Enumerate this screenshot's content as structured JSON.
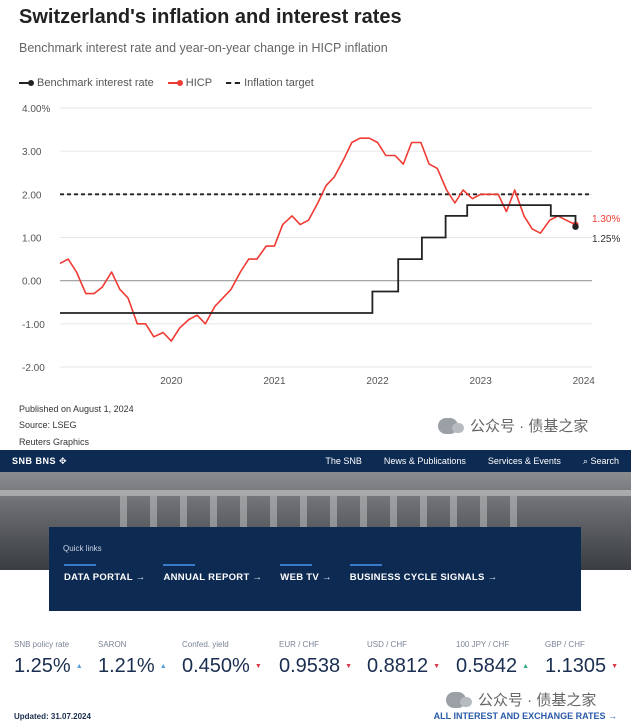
{
  "chart": {
    "title": "Switzerland's inflation and interest rates",
    "subtitle": "Benchmark interest rate and year-on-year change in HICP inflation",
    "legend": {
      "rate": "Benchmark interest rate",
      "hicp": "HICP",
      "target": "Inflation target"
    },
    "end_labels": {
      "hicp": "1.30%",
      "rate": "1.25%"
    },
    "footer": {
      "published": "Published on August 1, 2024",
      "source": "Source: LSEG",
      "credit": "Reuters Graphics"
    },
    "watermark": "公众号 · 债基之家"
  },
  "chart_data": {
    "type": "line",
    "title": "Switzerland's inflation and interest rates",
    "subtitle": "Benchmark interest rate and year-on-year change in HICP inflation",
    "x_axis": {
      "ticks": [
        "2020",
        "2021",
        "2022",
        "2023",
        "2024"
      ],
      "range": [
        2019.42,
        2024.58
      ]
    },
    "y_axis": {
      "ticks": [
        "4.00%",
        "3.00",
        "2.00",
        "1.00",
        "0.00",
        "-1.00",
        "-2.00"
      ],
      "range": [
        -2.0,
        4.0
      ]
    },
    "colors": {
      "rate": "#222222",
      "hicp": "#ef3b33",
      "target": "#222222",
      "zero": "#999999",
      "grid": "#e6e6e6"
    },
    "series": [
      {
        "name": "HICP",
        "points": [
          [
            2019.42,
            0.4
          ],
          [
            2019.5,
            0.5
          ],
          [
            2019.58,
            0.2
          ],
          [
            2019.67,
            -0.3
          ],
          [
            2019.75,
            -0.3
          ],
          [
            2019.83,
            -0.15
          ],
          [
            2019.92,
            0.2
          ],
          [
            2020.0,
            -0.2
          ],
          [
            2020.08,
            -0.4
          ],
          [
            2020.17,
            -1.0
          ],
          [
            2020.25,
            -1.0
          ],
          [
            2020.33,
            -1.3
          ],
          [
            2020.42,
            -1.2
          ],
          [
            2020.5,
            -1.4
          ],
          [
            2020.58,
            -1.1
          ],
          [
            2020.67,
            -0.9
          ],
          [
            2020.75,
            -0.8
          ],
          [
            2020.83,
            -1.0
          ],
          [
            2020.92,
            -0.6
          ],
          [
            2021.0,
            -0.4
          ],
          [
            2021.08,
            -0.2
          ],
          [
            2021.17,
            0.2
          ],
          [
            2021.25,
            0.5
          ],
          [
            2021.33,
            0.5
          ],
          [
            2021.42,
            0.8
          ],
          [
            2021.5,
            0.8
          ],
          [
            2021.58,
            1.3
          ],
          [
            2021.67,
            1.5
          ],
          [
            2021.75,
            1.3
          ],
          [
            2021.83,
            1.4
          ],
          [
            2021.92,
            1.8
          ],
          [
            2022.0,
            2.2
          ],
          [
            2022.08,
            2.4
          ],
          [
            2022.17,
            2.8
          ],
          [
            2022.25,
            3.2
          ],
          [
            2022.33,
            3.3
          ],
          [
            2022.42,
            3.3
          ],
          [
            2022.5,
            3.2
          ],
          [
            2022.58,
            2.9
          ],
          [
            2022.67,
            2.9
          ],
          [
            2022.75,
            2.7
          ],
          [
            2022.83,
            3.2
          ],
          [
            2022.92,
            3.2
          ],
          [
            2023.0,
            2.7
          ],
          [
            2023.08,
            2.6
          ],
          [
            2023.17,
            2.1
          ],
          [
            2023.25,
            1.8
          ],
          [
            2023.33,
            2.1
          ],
          [
            2023.42,
            1.9
          ],
          [
            2023.5,
            2.0
          ],
          [
            2023.58,
            2.0
          ],
          [
            2023.67,
            2.0
          ],
          [
            2023.75,
            1.6
          ],
          [
            2023.83,
            2.1
          ],
          [
            2023.92,
            1.5
          ],
          [
            2024.0,
            1.2
          ],
          [
            2024.08,
            1.1
          ],
          [
            2024.17,
            1.4
          ],
          [
            2024.25,
            1.5
          ],
          [
            2024.33,
            1.4
          ],
          [
            2024.42,
            1.3
          ]
        ]
      },
      {
        "name": "Benchmark interest rate",
        "points": [
          [
            2019.42,
            -0.75
          ],
          [
            2022.45,
            -0.75
          ],
          [
            2022.45,
            -0.25
          ],
          [
            2022.7,
            -0.25
          ],
          [
            2022.7,
            0.5
          ],
          [
            2022.93,
            0.5
          ],
          [
            2022.93,
            1.0
          ],
          [
            2023.16,
            1.0
          ],
          [
            2023.16,
            1.5
          ],
          [
            2023.37,
            1.5
          ],
          [
            2023.37,
            1.75
          ],
          [
            2024.18,
            1.75
          ],
          [
            2024.18,
            1.5
          ],
          [
            2024.42,
            1.5
          ],
          [
            2024.42,
            1.25
          ]
        ]
      },
      {
        "name": "Inflation target",
        "points": [
          [
            2019.42,
            2.0
          ],
          [
            2024.58,
            2.0
          ]
        ]
      }
    ]
  },
  "snb": {
    "logo": "SNB BNS ✥",
    "nav": [
      "The SNB",
      "News & Publications",
      "Services & Events",
      "⌕  Search"
    ],
    "quick_links_label": "Quick links",
    "quick_links": [
      "DATA PORTAL →",
      "ANNUAL REPORT →",
      "WEB TV →",
      "BUSINESS CYCLE SIGNALS →"
    ],
    "rates": [
      {
        "label": "SNB policy rate",
        "value": "1.25%",
        "tick": "▲",
        "tick_color": "#5aa0d8"
      },
      {
        "label": "SARON",
        "value": "1.21%",
        "tick": "▲",
        "tick_color": "#5aa0d8"
      },
      {
        "label": "Confed. yield",
        "value": "0.450%",
        "tick": "▼",
        "tick_color": "#d83a4a"
      },
      {
        "label": "EUR / CHF",
        "value": "0.9538",
        "tick": "▼",
        "tick_color": "#d83a4a"
      },
      {
        "label": "USD / CHF",
        "value": "0.8812",
        "tick": "▼",
        "tick_color": "#d83a4a"
      },
      {
        "label": "100 JPY / CHF",
        "value": "0.5842",
        "tick": "▲",
        "tick_color": "#2fae8a"
      },
      {
        "label": "GBP / CHF",
        "value": "1.1305",
        "tick": "▼",
        "tick_color": "#d83a4a"
      }
    ],
    "updated": "Updated: 31.07.2024",
    "all_rates": "ALL INTEREST AND EXCHANGE RATES  →",
    "watermark": "公众号 · 债基之家"
  }
}
